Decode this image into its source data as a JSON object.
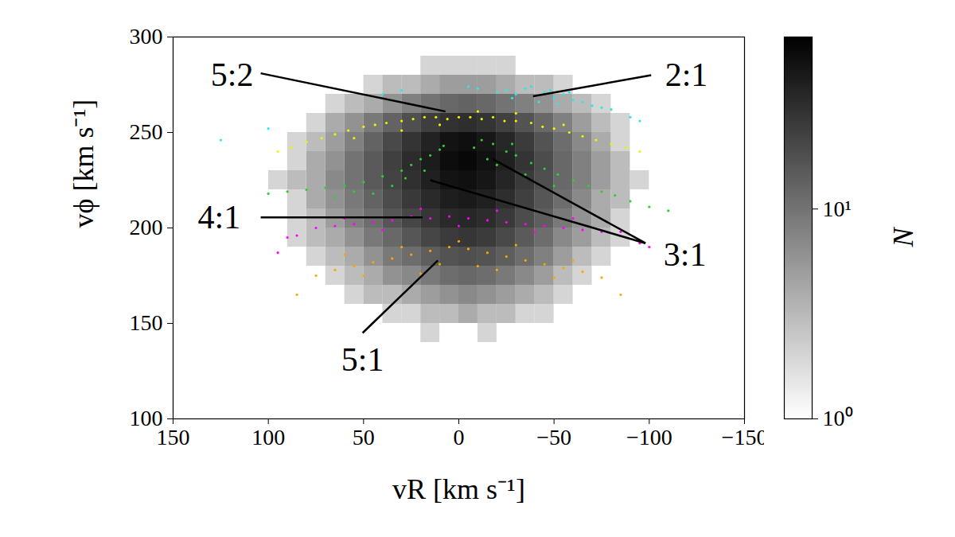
{
  "chart_data": {
    "type": "scatter",
    "x_label": "vR [km s⁻¹]",
    "y_label": "vϕ [km s⁻¹]",
    "xlim": [
      150,
      -150
    ],
    "xticks": [
      150,
      100,
      50,
      0,
      -50,
      -100,
      -150
    ],
    "ylim": [
      100,
      300
    ],
    "yticks": [
      100,
      150,
      200,
      250,
      300
    ],
    "histogram": {
      "x_edges": [
        -110,
        -100,
        -90,
        -80,
        -70,
        -60,
        -50,
        -40,
        -30,
        -20,
        -10,
        0,
        10,
        20,
        30,
        40,
        50,
        60,
        70,
        80,
        90,
        100,
        110
      ],
      "y_edges": [
        140,
        150,
        160,
        170,
        180,
        190,
        200,
        210,
        220,
        230,
        240,
        250,
        260,
        270,
        280,
        290
      ],
      "counts": [
        [
          0,
          0,
          0,
          0,
          0,
          1,
          0,
          1,
          1,
          2,
          1,
          1,
          2,
          1,
          1,
          0,
          1,
          0,
          0,
          0,
          0,
          0
        ],
        [
          0,
          0,
          0,
          0,
          1,
          1,
          2,
          2,
          3,
          3,
          4,
          3,
          3,
          2,
          2,
          1,
          1,
          1,
          0,
          0,
          0,
          0
        ],
        [
          0,
          0,
          0,
          1,
          1,
          2,
          3,
          4,
          5,
          6,
          7,
          6,
          5,
          4,
          3,
          3,
          2,
          1,
          1,
          0,
          0,
          0
        ],
        [
          0,
          0,
          1,
          1,
          2,
          3,
          5,
          7,
          9,
          11,
          12,
          11,
          9,
          7,
          6,
          4,
          3,
          2,
          1,
          1,
          0,
          0
        ],
        [
          0,
          1,
          1,
          2,
          3,
          5,
          8,
          11,
          14,
          17,
          18,
          17,
          14,
          11,
          9,
          6,
          4,
          3,
          2,
          1,
          1,
          0
        ],
        [
          0,
          1,
          2,
          3,
          5,
          7,
          11,
          15,
          20,
          25,
          27,
          25,
          21,
          16,
          12,
          9,
          6,
          4,
          3,
          2,
          1,
          0
        ],
        [
          1,
          1,
          2,
          4,
          6,
          9,
          14,
          19,
          26,
          32,
          35,
          33,
          27,
          21,
          16,
          11,
          8,
          5,
          3,
          2,
          1,
          1
        ],
        [
          1,
          1,
          3,
          4,
          7,
          11,
          16,
          23,
          31,
          39,
          43,
          40,
          33,
          26,
          19,
          13,
          9,
          6,
          4,
          2,
          1,
          1
        ],
        [
          1,
          2,
          3,
          5,
          8,
          12,
          18,
          26,
          36,
          46,
          51,
          48,
          39,
          30,
          22,
          15,
          10,
          7,
          4,
          3,
          2,
          1
        ],
        [
          1,
          1,
          3,
          5,
          8,
          12,
          19,
          28,
          39,
          50,
          58,
          53,
          42,
          32,
          23,
          15,
          10,
          6,
          4,
          2,
          1,
          1
        ],
        [
          0,
          1,
          2,
          4,
          7,
          11,
          17,
          25,
          35,
          45,
          52,
          48,
          38,
          28,
          20,
          13,
          8,
          5,
          3,
          2,
          1,
          0
        ],
        [
          0,
          1,
          2,
          3,
          5,
          8,
          12,
          17,
          23,
          28,
          31,
          29,
          24,
          18,
          13,
          9,
          6,
          4,
          2,
          1,
          1,
          0
        ],
        [
          0,
          0,
          1,
          2,
          3,
          4,
          6,
          8,
          10,
          12,
          13,
          12,
          10,
          8,
          6,
          4,
          3,
          2,
          1,
          1,
          0,
          0
        ],
        [
          0,
          0,
          0,
          1,
          1,
          2,
          3,
          3,
          4,
          5,
          5,
          5,
          4,
          3,
          3,
          2,
          1,
          1,
          1,
          0,
          0,
          0
        ],
        [
          0,
          0,
          0,
          0,
          0,
          1,
          1,
          1,
          2,
          2,
          2,
          2,
          2,
          1,
          1,
          1,
          0,
          0,
          0,
          0,
          0,
          0
        ]
      ]
    },
    "colorbar": {
      "label": "N",
      "log": true,
      "range": [
        1,
        66
      ],
      "ticks": [
        {
          "value": 1,
          "label": "10⁰"
        },
        {
          "value": 10,
          "label": "10¹"
        }
      ]
    },
    "series": [
      {
        "name": "2:1",
        "color": "#2ee6e6",
        "x": [
          -20,
          -25,
          -30,
          -35,
          -40,
          -45,
          -50,
          -55,
          -60,
          -65,
          -10,
          -5,
          -70,
          -75,
          -38,
          -48,
          -58,
          -28,
          -80,
          -90,
          -95,
          30,
          40,
          100,
          125,
          -42,
          -52
        ],
        "y": [
          271,
          272,
          270,
          273,
          269,
          271,
          268,
          270,
          267,
          266,
          273,
          274,
          264,
          263,
          274,
          272,
          271,
          268,
          262,
          258,
          256,
          272,
          270,
          252,
          246,
          266,
          265
        ]
      },
      {
        "name": "5:2",
        "color": "#f2f200",
        "x": [
          95,
          88,
          80,
          72,
          65,
          58,
          50,
          44,
          38,
          30,
          24,
          18,
          12,
          6,
          0,
          -6,
          -12,
          -18,
          -24,
          -30,
          -38,
          -44,
          -50,
          -58,
          -65,
          -72,
          -80,
          -88,
          -95,
          10,
          -10,
          30,
          -30,
          55,
          -55
        ],
        "y": [
          240,
          242,
          245,
          247,
          249,
          251,
          253,
          254,
          255,
          256,
          257,
          258,
          258,
          257,
          258,
          258,
          257,
          258,
          256,
          256,
          255,
          253,
          252,
          250,
          248,
          246,
          244,
          242,
          240,
          254,
          261,
          251,
          260,
          247,
          254
        ]
      },
      {
        "name": "3:1",
        "color": "#33cc33",
        "x": [
          100,
          90,
          80,
          70,
          60,
          50,
          40,
          30,
          25,
          20,
          15,
          10,
          8,
          45,
          35,
          55,
          28,
          18,
          65,
          -8,
          -12,
          -18,
          -25,
          -30,
          -38,
          -45,
          -52,
          -60,
          -68,
          -75,
          -82,
          -90,
          -100,
          -110,
          -20,
          -35,
          -50,
          -15,
          -28
        ],
        "y": [
          218,
          219,
          220,
          221,
          222,
          224,
          227,
          230,
          233,
          236,
          238,
          241,
          243,
          218,
          222,
          219,
          226,
          230,
          216,
          242,
          246,
          244,
          240,
          238,
          234,
          231,
          228,
          225,
          222,
          219,
          217,
          214,
          211,
          209,
          233,
          228,
          222,
          236,
          244
        ]
      },
      {
        "name": "4:1",
        "color": "#ff00ff",
        "x": [
          95,
          85,
          75,
          65,
          55,
          45,
          35,
          25,
          15,
          5,
          -5,
          -15,
          -25,
          -35,
          -45,
          -55,
          -65,
          -75,
          -85,
          -95,
          60,
          20,
          -20,
          -60,
          40,
          0,
          -40,
          90,
          -100
        ],
        "y": [
          187,
          196,
          200,
          201,
          202,
          203,
          204,
          206,
          205,
          206,
          205,
          204,
          203,
          202,
          201,
          200,
          199,
          198,
          198,
          192,
          205,
          210,
          209,
          205,
          199,
          201,
          198,
          195,
          190
        ]
      },
      {
        "name": "5:1",
        "color": "#ffa500",
        "x": [
          85,
          75,
          65,
          55,
          45,
          35,
          25,
          15,
          5,
          -5,
          -15,
          -25,
          -35,
          -45,
          -55,
          -65,
          -75,
          -85,
          60,
          30,
          0,
          -30,
          -60,
          20,
          -20,
          50,
          -50,
          10,
          -10
        ],
        "y": [
          165,
          175,
          178,
          180,
          182,
          184,
          186,
          188,
          190,
          189,
          187,
          185,
          183,
          181,
          179,
          177,
          174,
          165,
          186,
          190,
          193,
          191,
          183,
          176,
          178,
          175,
          174,
          181,
          180
        ]
      }
    ],
    "annotations": [
      {
        "text": "5:2",
        "x": 119,
        "y": 280,
        "from": [
          104,
          281
        ],
        "to": [
          [
            7,
            261
          ]
        ]
      },
      {
        "text": "2:1",
        "x": -119.5,
        "y": 280,
        "from": [
          -101,
          280
        ],
        "to": [
          [
            -39,
            269
          ]
        ]
      },
      {
        "text": "3:1",
        "x": -118.7,
        "y": 186,
        "from": [
          -98,
          192
        ],
        "to": [
          [
            15,
            225
          ],
          [
            -18,
            236
          ]
        ]
      },
      {
        "text": "4:1",
        "x": 125.8,
        "y": 205.5,
        "from": [
          104,
          205.5
        ],
        "to": [
          [
            19,
            205.5
          ]
        ]
      },
      {
        "text": "5:1",
        "x": 50.5,
        "y": 131,
        "from": [
          50.5,
          145
        ],
        "to": [
          [
            11,
            183
          ]
        ]
      }
    ]
  }
}
